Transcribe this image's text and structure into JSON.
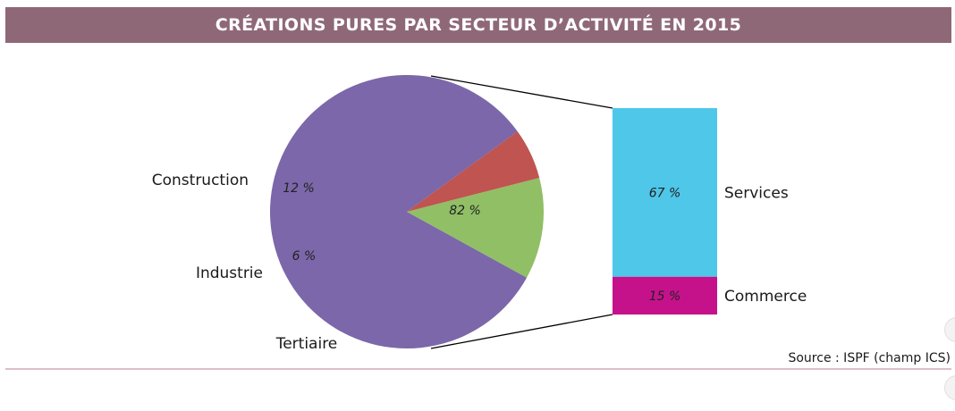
{
  "chart_data": {
    "type": "pie",
    "title": "CRÉATIONS PURES PAR SECTEUR D’ACTIVITÉ EN 2015",
    "pie": {
      "slices": [
        {
          "label": "Tertiaire",
          "value": 82,
          "value_label": "82 %",
          "color": "#7b67a9"
        },
        {
          "label": "Construction",
          "value": 12,
          "value_label": "12 %",
          "color": "#90bf65"
        },
        {
          "label": "Industrie",
          "value": 6,
          "value_label": "6 %",
          "color": "#bf5450"
        }
      ]
    },
    "breakdown": {
      "of": "Tertiaire",
      "segments": [
        {
          "label": "Services",
          "value": 67,
          "value_label": "67 %",
          "color": "#4ec7e9"
        },
        {
          "label": "Commerce",
          "value": 15,
          "value_label": "15 %",
          "color": "#c5128a"
        }
      ]
    },
    "source": "Source : ISPF (champ ICS)"
  },
  "colors": {
    "title_bar": "#8f6877",
    "rule": "#b9828e"
  }
}
